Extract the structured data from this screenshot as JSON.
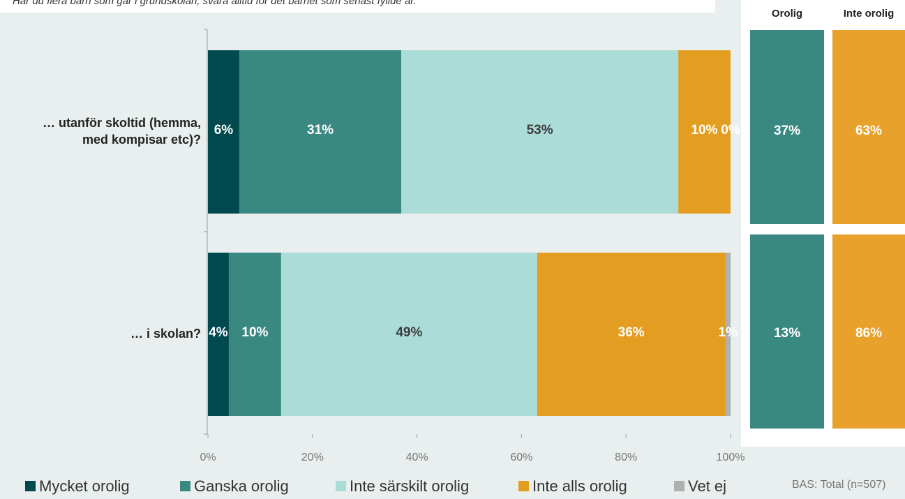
{
  "chart_data": {
    "type": "stacked-bar-horizontal",
    "subtitle": "Har du flera barn som går i grundskolan, svara alltid för det barnet som senast fyllde år.",
    "categories": [
      "… utanför skoltid (hemma, med kompisar etc)?",
      "… i skolan?"
    ],
    "series": [
      {
        "name": "Mycket orolig",
        "color": "#004a4f",
        "label_color": "#ffffff",
        "values": [
          6,
          4
        ],
        "value_labels": [
          "6%",
          "4%"
        ]
      },
      {
        "name": "Ganska orolig",
        "color": "#3a8882",
        "label_color": "#ffffff",
        "values": [
          31,
          10
        ],
        "value_labels": [
          "31%",
          "10%"
        ]
      },
      {
        "name": "Inte särskilt orolig",
        "color": "#abdcd8",
        "label_color": "#3c3c3c",
        "values": [
          53,
          49
        ],
        "value_labels": [
          "53%",
          "49%"
        ]
      },
      {
        "name": "Inte alls orolig",
        "color": "#e39e22",
        "label_color": "#ffffff",
        "values": [
          10,
          36
        ],
        "value_labels": [
          "10%",
          "36%"
        ]
      },
      {
        "name": "Vet ej",
        "color": "#b0b0b0",
        "label_color": "#ffffff",
        "values": [
          0,
          1
        ],
        "value_labels": [
          "0%",
          "1%"
        ]
      }
    ],
    "xlim": [
      0,
      100
    ],
    "xticks": [
      {
        "value": 0,
        "label": "0%"
      },
      {
        "value": 20,
        "label": "20%"
      },
      {
        "value": 40,
        "label": "40%"
      },
      {
        "value": 60,
        "label": "60%"
      },
      {
        "value": 80,
        "label": "80%"
      },
      {
        "value": 100,
        "label": "100%"
      }
    ],
    "legend": "bottom",
    "summary": {
      "headers": [
        "Orolig",
        "Inte orolig"
      ],
      "colors": [
        "#3a8882",
        "#e8a12a"
      ],
      "values": [
        [
          37,
          63
        ],
        [
          13,
          86
        ]
      ],
      "value_labels": [
        [
          "37%",
          "63%"
        ],
        [
          "13%",
          "86%"
        ]
      ]
    },
    "footnote": "BAS: Total (n=507)"
  }
}
